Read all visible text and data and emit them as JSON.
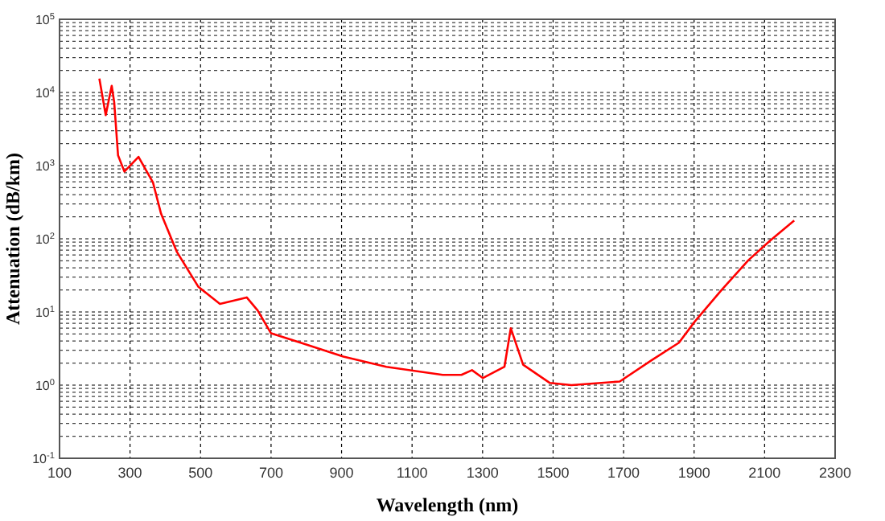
{
  "chart_data": {
    "type": "line",
    "xlabel": "Wavelength (nm)",
    "ylabel": "Attenuation (dB/km)",
    "log": "y",
    "grid": true,
    "xlim": [
      100,
      2300
    ],
    "xticks": [
      100,
      300,
      500,
      700,
      900,
      1100,
      1300,
      1500,
      1700,
      1900,
      2100,
      2300
    ],
    "ylim": [
      0.1,
      100000
    ],
    "yticks": [
      {
        "value": 0.1,
        "label": "10$^{-1}$"
      },
      {
        "value": 1,
        "label": "10$^{0}$"
      },
      {
        "value": 10,
        "label": "10$^{1}$"
      },
      {
        "value": 100,
        "label": "10$^{2}$"
      },
      {
        "value": 1000,
        "label": "10$^{3}$"
      },
      {
        "value": 10000,
        "label": "10$^{4}$"
      },
      {
        "value": 100000,
        "label": "10$^{5}$"
      }
    ],
    "series": [
      {
        "color": "#ff0000",
        "x": [
          213,
          231,
          248,
          255,
          266,
          284,
          324,
          365,
          388,
          433,
          494,
          555,
          631,
          662,
          700,
          784,
          905,
          1027,
          1187,
          1240,
          1270,
          1301,
          1362,
          1380,
          1415,
          1491,
          1552,
          1689,
          1780,
          1857,
          1902,
          1978,
          2054,
          2115,
          2184
        ],
        "values": [
          15500,
          4900,
          12300,
          7400,
          1380,
          830,
          1320,
          590,
          220,
          66,
          22,
          12.9,
          15.8,
          10.5,
          5.1,
          3.8,
          2.45,
          1.78,
          1.38,
          1.38,
          1.6,
          1.25,
          1.78,
          6.0,
          1.9,
          1.07,
          1.0,
          1.12,
          2.2,
          3.8,
          7.4,
          20,
          51,
          94,
          178
        ]
      }
    ]
  }
}
